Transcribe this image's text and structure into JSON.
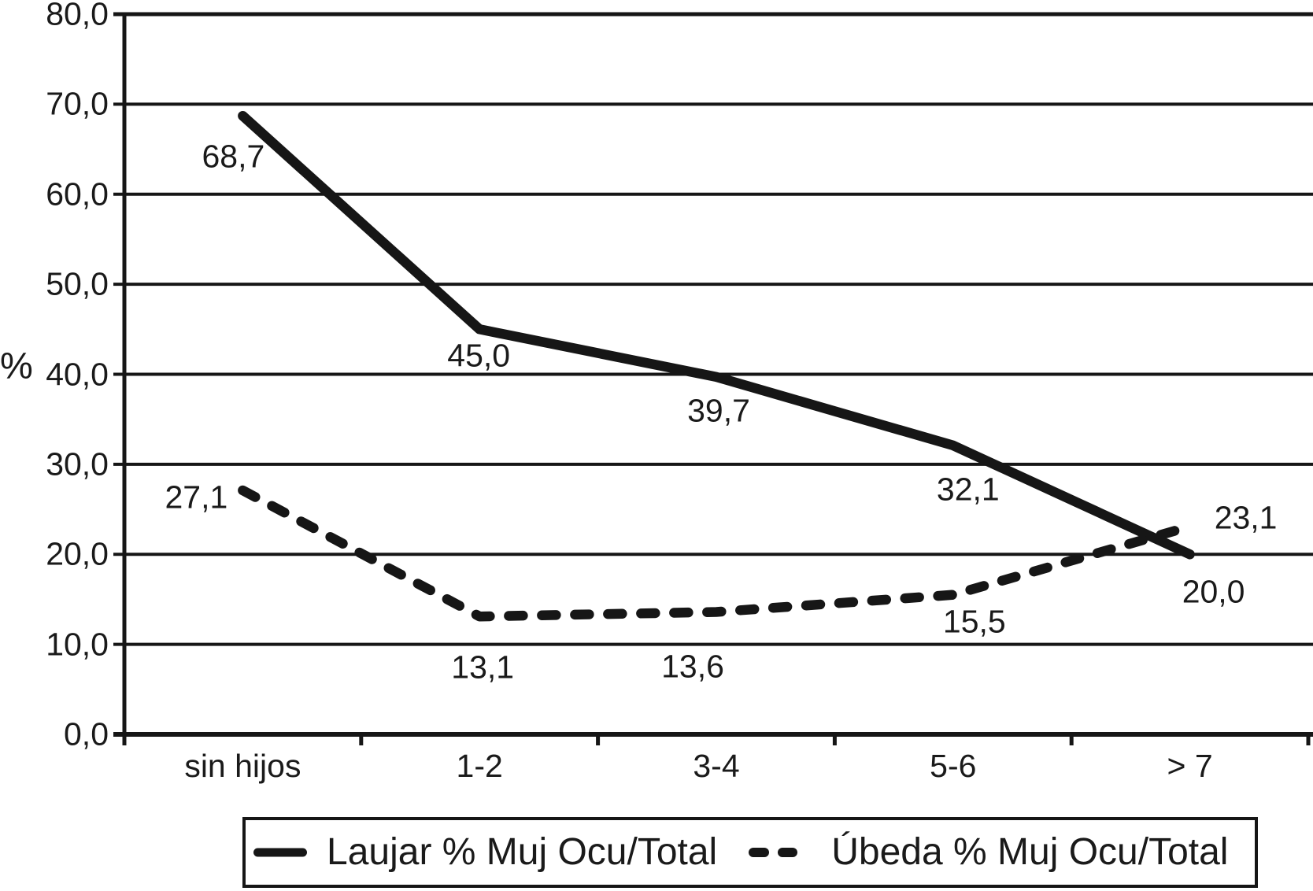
{
  "chart_data": {
    "type": "line",
    "categories": [
      "sin hijos",
      "1-2",
      "3-4",
      "5-6",
      "> 7"
    ],
    "series": [
      {
        "name": "Laujar % Muj Ocu/Total",
        "line_style": "solid",
        "values": [
          68.7,
          45.0,
          39.7,
          32.1,
          20.0
        ],
        "point_labels": [
          "68,7",
          "45,0",
          "39,7",
          "32,1",
          "20,0"
        ]
      },
      {
        "name": "Úbeda % Muj Ocu/Total",
        "line_style": "dashed",
        "values": [
          27.1,
          13.1,
          13.6,
          15.5,
          23.1
        ],
        "point_labels": [
          "27,1",
          "13,1",
          "13,6",
          "15,5",
          "23,1"
        ]
      }
    ],
    "title": "",
    "xlabel": "",
    "ylabel": "%",
    "ylim": [
      0,
      80
    ],
    "ytick_step": 10,
    "ytick_labels": [
      "0,0",
      "10,0",
      "20,0",
      "30,0",
      "40,0",
      "50,0",
      "60,0",
      "70,0",
      "80,0"
    ],
    "grid": true,
    "legend_position": "bottom",
    "line_color": "#161616",
    "background_color": "#ffffff"
  }
}
